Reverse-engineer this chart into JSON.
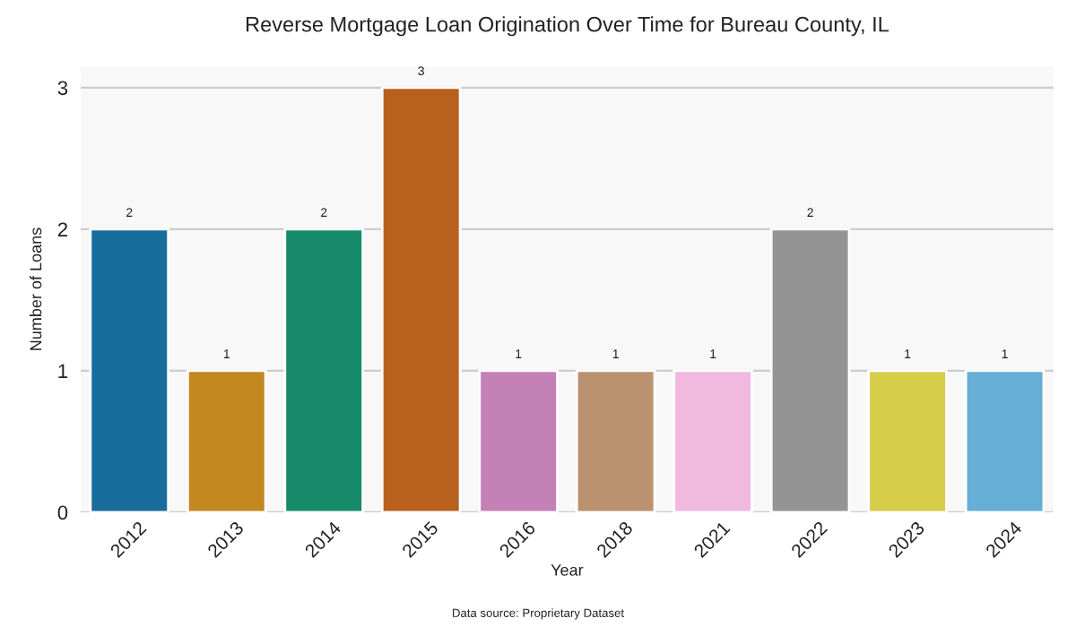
{
  "chart_data": {
    "type": "bar",
    "title": "Reverse Mortgage Loan Origination Over Time for Bureau County, IL",
    "xlabel": "Year",
    "ylabel": "Number of Loans",
    "categories": [
      "2012",
      "2013",
      "2014",
      "2015",
      "2016",
      "2018",
      "2021",
      "2022",
      "2023",
      "2024"
    ],
    "values": [
      2,
      1,
      2,
      3,
      1,
      1,
      1,
      2,
      1,
      1
    ],
    "colors": [
      "#176c9c",
      "#c38820",
      "#178b69",
      "#b8601e",
      "#c381b5",
      "#bb9270",
      "#f1b8e0",
      "#949494",
      "#d6cd4b",
      "#66aed6"
    ],
    "ylim": [
      0,
      3.15
    ],
    "yticks": [
      0,
      1,
      2,
      3
    ],
    "grid": "y",
    "data_labels": true,
    "annotations": [
      "Data source: Proprietary Dataset"
    ]
  }
}
